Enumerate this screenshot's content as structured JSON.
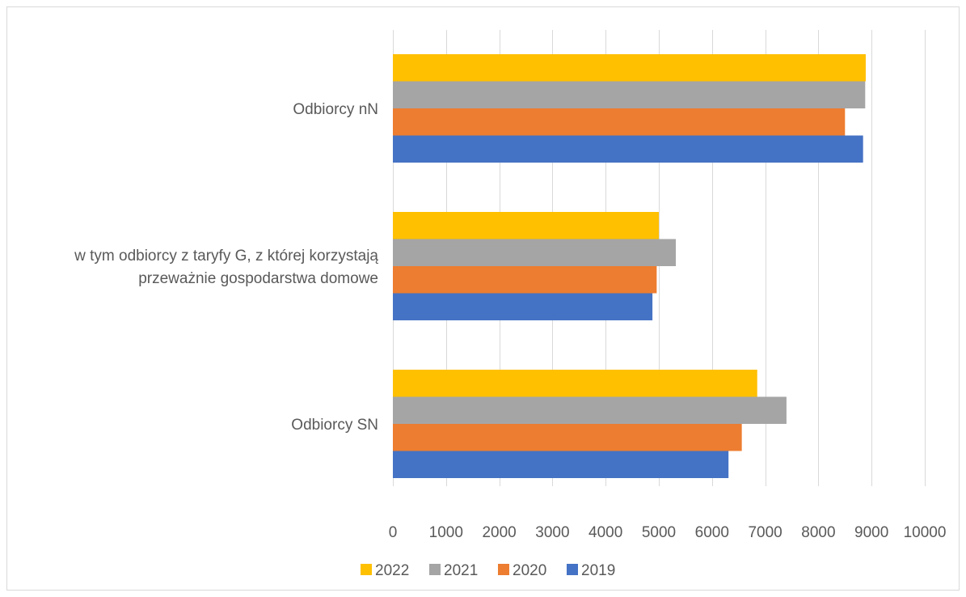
{
  "chart_data": {
    "type": "bar",
    "orientation": "horizontal",
    "categories": [
      "Odbiorcy nN",
      "w tym odbiorcy z taryfy G, z której korzystają przeważnie gospodarstwa domowe",
      "Odbiorcy SN"
    ],
    "category_label_lines": [
      [
        "Odbiorcy nN"
      ],
      [
        "w tym odbiorcy z taryfy G, z której korzystają",
        "przeważnie gospodarstwa domowe"
      ],
      [
        "Odbiorcy SN"
      ]
    ],
    "series": [
      {
        "name": "2022",
        "color": "#FFC000",
        "values": [
          8890,
          5000,
          6850
        ]
      },
      {
        "name": "2021",
        "color": "#A5A5A5",
        "values": [
          8880,
          5320,
          7400
        ]
      },
      {
        "name": "2020",
        "color": "#ED7D31",
        "values": [
          8500,
          4960,
          6560
        ]
      },
      {
        "name": "2019",
        "color": "#4472C4",
        "values": [
          8840,
          4880,
          6310
        ]
      }
    ],
    "title": "",
    "xlabel": "",
    "ylabel": "",
    "xlim": [
      0,
      10000
    ],
    "ticks": [
      "0",
      "1000",
      "2000",
      "3000",
      "4000",
      "5000",
      "6000",
      "7000",
      "8000",
      "9000",
      "10000"
    ],
    "tick_values": [
      0,
      1000,
      2000,
      3000,
      4000,
      5000,
      6000,
      7000,
      8000,
      9000,
      10000
    ],
    "grid": "vertical",
    "legend_position": "bottom"
  }
}
